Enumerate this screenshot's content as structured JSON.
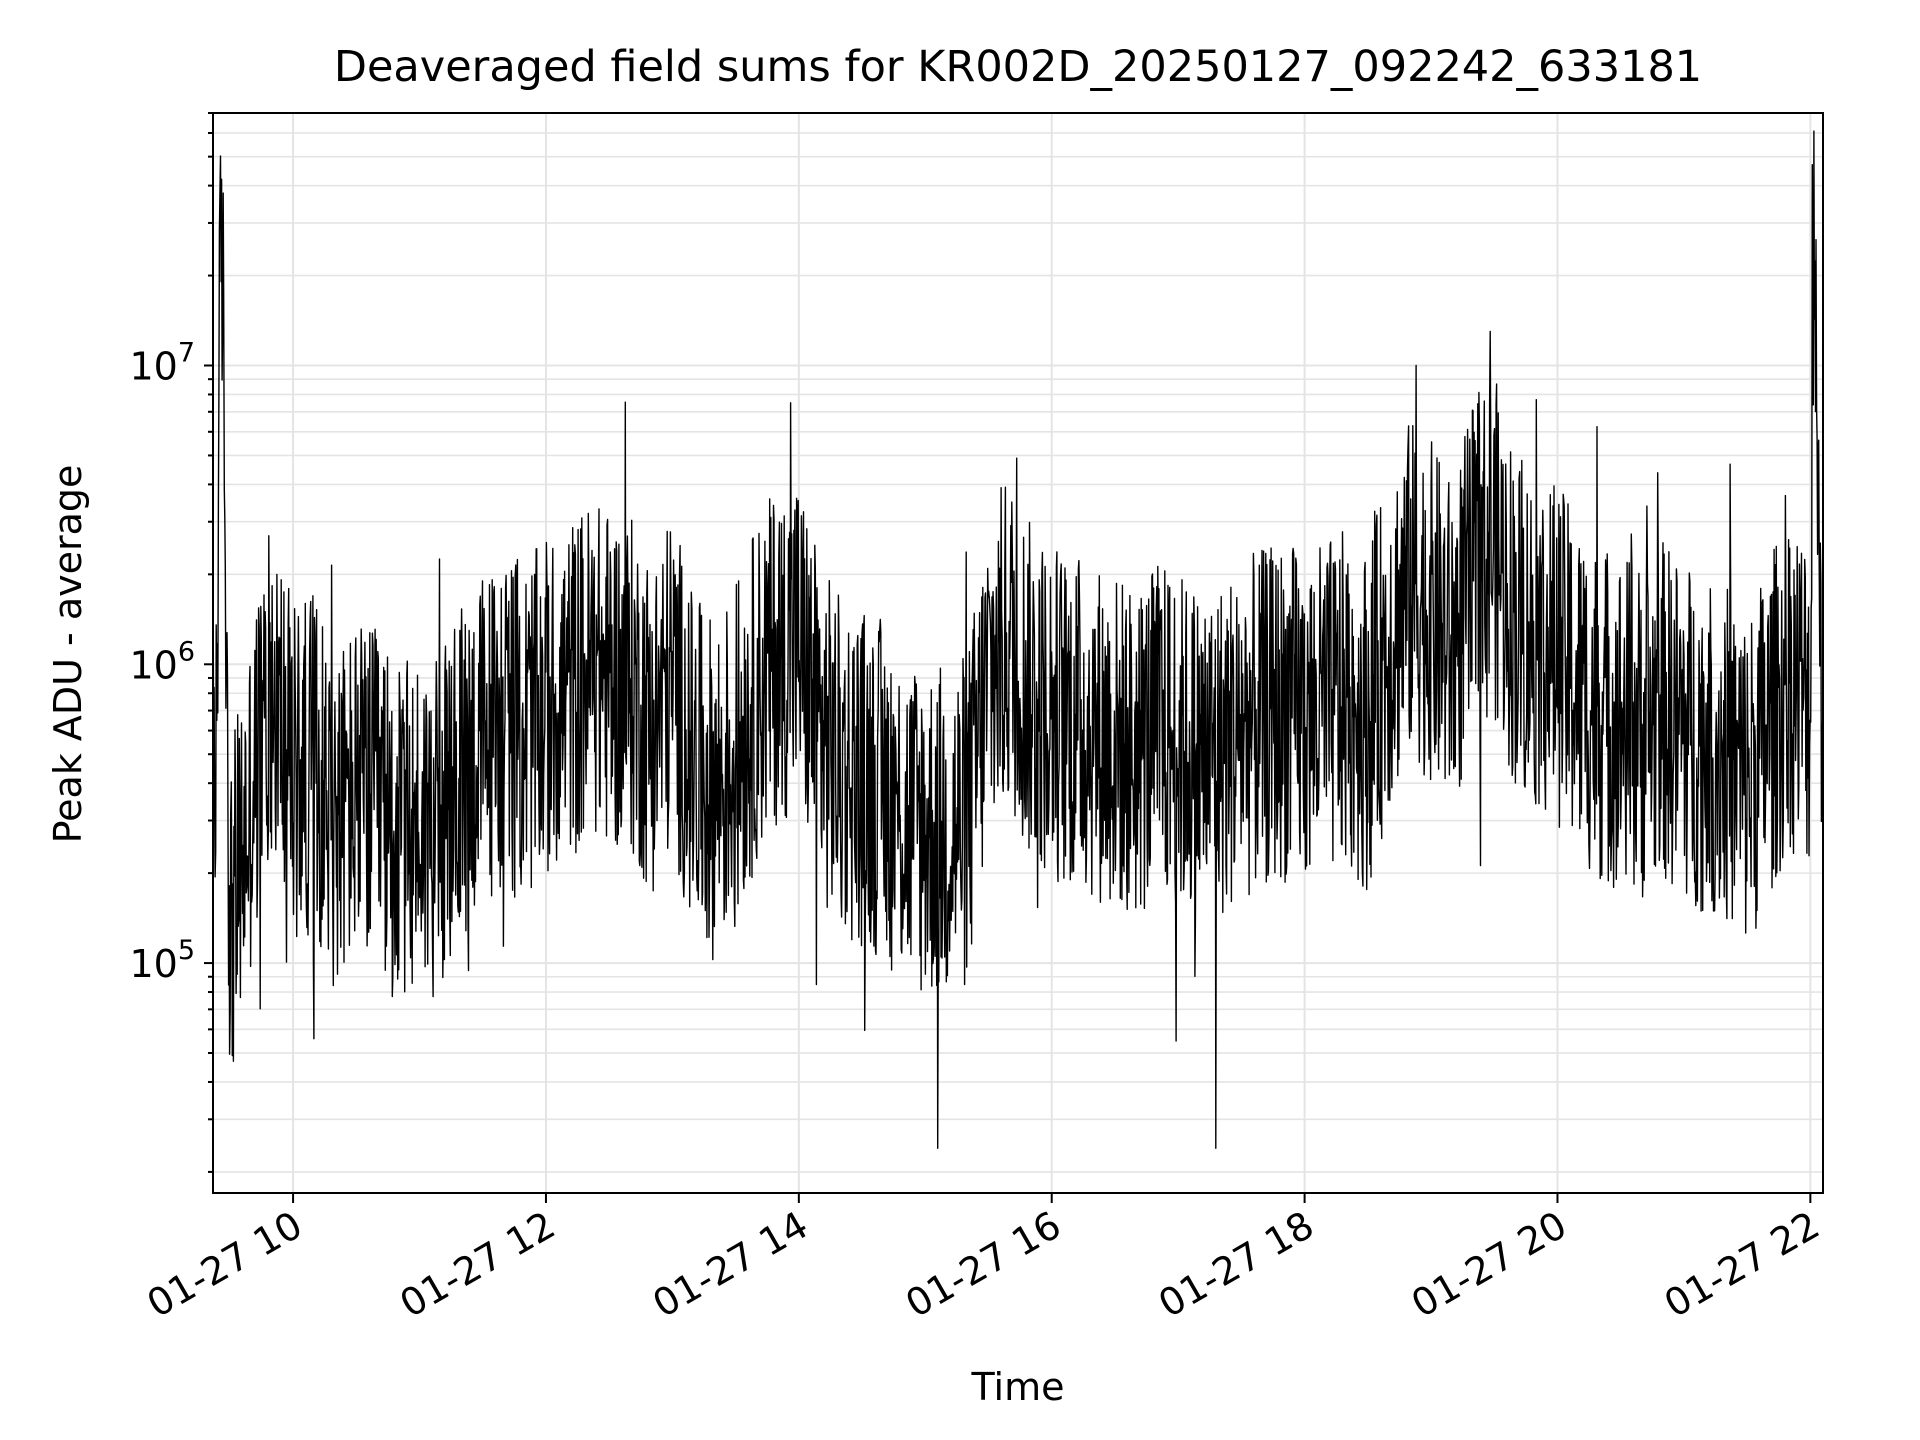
{
  "chart_data": {
    "type": "line",
    "title": "Deaveraged field sums for KR002D_20250127_092242_633181",
    "xlabel": "Time",
    "ylabel": "Peak ADU - average",
    "x_ticks": [
      "01-27 10",
      "01-27 12",
      "01-27 14",
      "01-27 16",
      "01-27 18",
      "01-27 20",
      "01-27 22"
    ],
    "x_range": [
      "2025-01-27 09:22",
      "2025-01-27 22:06"
    ],
    "y_scale": "log",
    "ylim": [
      17000,
      70000000
    ],
    "y_tick_labels": [
      {
        "base": "10",
        "exp": "5",
        "value": 100000
      },
      {
        "base": "10",
        "exp": "6",
        "value": 1000000
      },
      {
        "base": "10",
        "exp": "7",
        "value": 10000000
      }
    ],
    "grid": true,
    "line_color": "#000000",
    "series": [
      {
        "x": [
          "2025-01-27 09:23",
          "2025-01-27 09:26",
          "2025-01-27 09:30",
          "2025-01-27 09:40",
          "2025-01-27 09:50",
          "2025-01-27 10:00",
          "2025-01-27 10:10",
          "2025-01-27 10:20",
          "2025-01-27 10:30",
          "2025-01-27 10:40",
          "2025-01-27 10:50",
          "2025-01-27 11:00",
          "2025-01-27 11:10",
          "2025-01-27 11:20",
          "2025-01-27 11:30",
          "2025-01-27 11:40",
          "2025-01-27 11:50",
          "2025-01-27 12:00",
          "2025-01-27 12:10",
          "2025-01-27 12:20",
          "2025-01-27 12:30",
          "2025-01-27 12:40",
          "2025-01-27 12:50",
          "2025-01-27 13:00",
          "2025-01-27 13:10",
          "2025-01-27 13:20",
          "2025-01-27 13:30",
          "2025-01-27 13:40",
          "2025-01-27 13:50",
          "2025-01-27 14:00",
          "2025-01-27 14:10",
          "2025-01-27 14:20",
          "2025-01-27 14:30",
          "2025-01-27 14:40",
          "2025-01-27 14:50",
          "2025-01-27 15:00",
          "2025-01-27 15:10",
          "2025-01-27 15:20",
          "2025-01-27 15:30",
          "2025-01-27 15:40",
          "2025-01-27 15:50",
          "2025-01-27 16:00",
          "2025-01-27 16:10",
          "2025-01-27 16:20",
          "2025-01-27 16:30",
          "2025-01-27 16:40",
          "2025-01-27 16:50",
          "2025-01-27 17:00",
          "2025-01-27 17:10",
          "2025-01-27 17:20",
          "2025-01-27 17:30",
          "2025-01-27 17:40",
          "2025-01-27 17:50",
          "2025-01-27 18:00",
          "2025-01-27 18:10",
          "2025-01-27 18:20",
          "2025-01-27 18:30",
          "2025-01-27 18:40",
          "2025-01-27 18:50",
          "2025-01-27 19:00",
          "2025-01-27 19:10",
          "2025-01-27 19:20",
          "2025-01-27 19:30",
          "2025-01-27 19:40",
          "2025-01-27 19:50",
          "2025-01-27 20:00",
          "2025-01-27 20:10",
          "2025-01-27 20:20",
          "2025-01-27 20:30",
          "2025-01-27 20:40",
          "2025-01-27 20:50",
          "2025-01-27 21:00",
          "2025-01-27 21:10",
          "2025-01-27 21:20",
          "2025-01-27 21:30",
          "2025-01-27 21:40",
          "2025-01-27 21:50",
          "2025-01-27 22:00",
          "2025-01-27 22:02",
          "2025-01-27 22:05"
        ],
        "y": [
          250000,
          42000000,
          130000,
          350000,
          900000,
          420000,
          480000,
          300000,
          380000,
          350000,
          260000,
          300000,
          280000,
          430000,
          550000,
          650000,
          600000,
          700000,
          800000,
          950000,
          900000,
          850000,
          620000,
          900000,
          450000,
          380000,
          500000,
          800000,
          1100000,
          1200000,
          600000,
          450000,
          420000,
          380000,
          300000,
          280000,
          270000,
          300000,
          900000,
          1200000,
          800000,
          700000,
          650000,
          600000,
          550000,
          500000,
          600000,
          550000,
          500000,
          520000,
          600000,
          650000,
          700000,
          650000,
          700000,
          750000,
          650000,
          1200000,
          1800000,
          1500000,
          1100000,
          2000000,
          2500000,
          1400000,
          1200000,
          1100000,
          800000,
          700000,
          650000,
          600000,
          700000,
          600000,
          550000,
          500000,
          400000,
          600000,
          900000,
          750000,
          47000000,
          650000
        ],
        "peaks": [
          {
            "x": "2025-01-27 09:26",
            "y": 42000000
          },
          {
            "x": "2025-01-27 13:56",
            "y": 7500000
          },
          {
            "x": "2025-01-27 15:06",
            "y": 24000
          },
          {
            "x": "2025-01-27 17:18",
            "y": 24000
          },
          {
            "x": "2025-01-27 18:53",
            "y": 10000000
          },
          {
            "x": "2025-01-27 19:28",
            "y": 13000000
          },
          {
            "x": "2025-01-27 22:01",
            "y": 47000000
          }
        ]
      }
    ]
  }
}
